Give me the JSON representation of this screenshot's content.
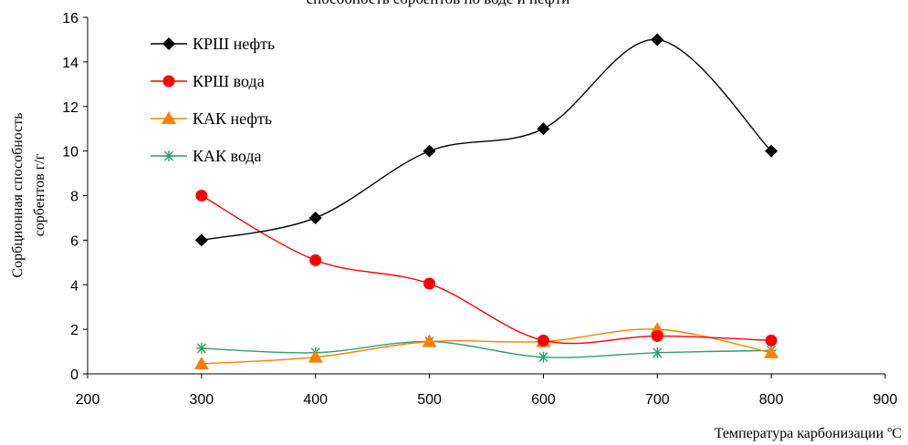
{
  "chart_data": {
    "type": "line",
    "title": "способность сорбентов по воде и нефти",
    "xlabel": "Температура карбонизации ºС",
    "ylabel_line1": "Сорбционная способность",
    "ylabel_line2": "сорбентов г/г",
    "xlim": [
      200,
      900
    ],
    "ylim": [
      0,
      16
    ],
    "xticks": [
      200,
      300,
      400,
      500,
      600,
      700,
      800,
      900
    ],
    "yticks": [
      0,
      2,
      4,
      6,
      8,
      10,
      12,
      14,
      16
    ],
    "grid": false,
    "legend_position": "top-left",
    "x": [
      300,
      400,
      500,
      600,
      700,
      800
    ],
    "series": [
      {
        "name": "КРШ нефть",
        "color": "#000000",
        "marker": "diamond",
        "values": [
          6,
          7,
          10,
          11,
          15,
          10
        ]
      },
      {
        "name": "КРШ вода",
        "color": "#ff0000",
        "marker": "circle",
        "values": [
          8,
          5.1,
          4.05,
          1.5,
          1.7,
          1.5
        ]
      },
      {
        "name": "КАК нефть",
        "color": "#ff7f00",
        "marker": "triangle",
        "values": [
          0.45,
          0.75,
          1.45,
          1.45,
          2.0,
          0.95
        ]
      },
      {
        "name": "КАК вода",
        "color": "#2e9e6e",
        "marker": "asterisk",
        "values": [
          1.15,
          0.95,
          1.45,
          0.75,
          0.95,
          1.05
        ]
      }
    ]
  }
}
